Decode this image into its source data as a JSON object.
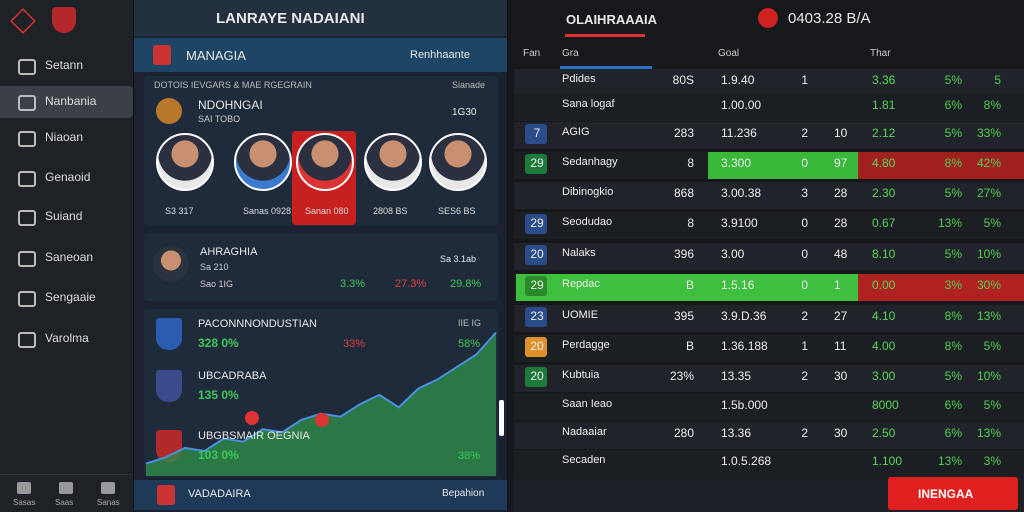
{
  "sidebar": {
    "nav": [
      "Setann",
      "Nanbania",
      "Niaoan",
      "Genaoid",
      "Suiand",
      "Saneoan",
      "Sengaaie",
      "Varolma"
    ],
    "footer": [
      "Sasas",
      "Saas",
      "Sanas"
    ]
  },
  "middle": {
    "title": "LANRAYE NADAIANI",
    "subheader": {
      "left": "MANAGIA",
      "right": "Renhhaante"
    },
    "squad": {
      "caption": "DOTOIS IEVGARS & MAE RGEGRAIN",
      "caption_right": "Sianade",
      "team": "NDOHNGAI",
      "team_sub": "SAI TOBO",
      "team_value": "1G30",
      "players": [
        "S3 317",
        "Sanas 0928",
        "Sanan 080",
        "2808 BS",
        "SES6 BS"
      ]
    },
    "player_card": {
      "name": "AHRAGHIA",
      "sub": "Sa 210",
      "sub2": "Sao 1IG",
      "right": "Sa 3.1ab",
      "stats": [
        "3.3%",
        "27.3%",
        "29.8%"
      ]
    },
    "chart_card": {
      "rows": [
        {
          "name": "PACONNNONDUSTIAN",
          "value": "328 0%",
          "mid": "33%",
          "right": "58%",
          "corner": "IIE IG"
        },
        {
          "name": "UBCADRABA",
          "value": "135 0%"
        },
        {
          "name": "UBGBSMAIR OEGNIA",
          "value": "103 0%",
          "right": "38%"
        }
      ],
      "chart_data": {
        "type": "area",
        "color": "#2e8b4a",
        "values": [
          8,
          12,
          18,
          16,
          24,
          22,
          30,
          28,
          36,
          40,
          38,
          46,
          52,
          44,
          56,
          62,
          70,
          78,
          92
        ],
        "ylim": [
          0,
          100
        ]
      }
    },
    "footer": {
      "left": "VADADAIRA",
      "right": "Bepahion"
    }
  },
  "right": {
    "title": "OLAIHRAAAIA",
    "score": "0403.28 B/A",
    "columns": [
      "Fan",
      "Gra",
      "Goal",
      "Thar"
    ],
    "rows": [
      [
        "",
        "Pdides",
        "80S",
        "1.9.40",
        "1",
        "",
        "3.36",
        "5%",
        "5"
      ],
      [
        "",
        "Sana logaf",
        "",
        "1.00.00",
        "",
        "",
        "1.81",
        "6%",
        "8%"
      ],
      [
        "7",
        "AGIG",
        "283",
        "11.236",
        "2",
        "10",
        "2.12",
        "5%",
        "33%"
      ],
      [
        "29",
        "Sedanhagy",
        "8",
        "3.300",
        "0",
        "97",
        "4.80",
        "8%",
        "42%"
      ],
      [
        "",
        "Dibinogkio",
        "868",
        "3.00.38",
        "3",
        "28",
        "2.30",
        "5%",
        "27%"
      ],
      [
        "29",
        "Seodudao",
        "8",
        "3.9100",
        "0",
        "28",
        "0.67",
        "13%",
        "5%"
      ],
      [
        "20",
        "Nalaks",
        "396",
        "3.00",
        "0",
        "48",
        "8.10",
        "5%",
        "10%"
      ],
      [
        "29",
        "Repdac",
        "B",
        "1.5.16",
        "0",
        "1",
        "0.00",
        "3%",
        "30%"
      ],
      [
        "23",
        "UOMIE",
        "395",
        "3.9.D.36",
        "2",
        "27",
        "4.10",
        "8%",
        "13%"
      ],
      [
        "20",
        "Perdagge",
        "B",
        "1.36.188",
        "1",
        "11",
        "4.00",
        "8%",
        "5%"
      ],
      [
        "20",
        "Kubtuia",
        "23%",
        "13.35",
        "2",
        "30",
        "3.00",
        "5%",
        "10%"
      ],
      [
        "",
        "Saan Ieao",
        "",
        "1.5b.000",
        "",
        "",
        "8000",
        "6%",
        "5%"
      ],
      [
        "",
        "Nadaaiar",
        "280",
        "13.36",
        "2",
        "30",
        "2.50",
        "6%",
        "13%"
      ],
      [
        "",
        "Secaden",
        "",
        "1.0.5.268",
        "",
        "",
        "1.100",
        "13%",
        "3%"
      ]
    ],
    "action": "INENGAA"
  }
}
